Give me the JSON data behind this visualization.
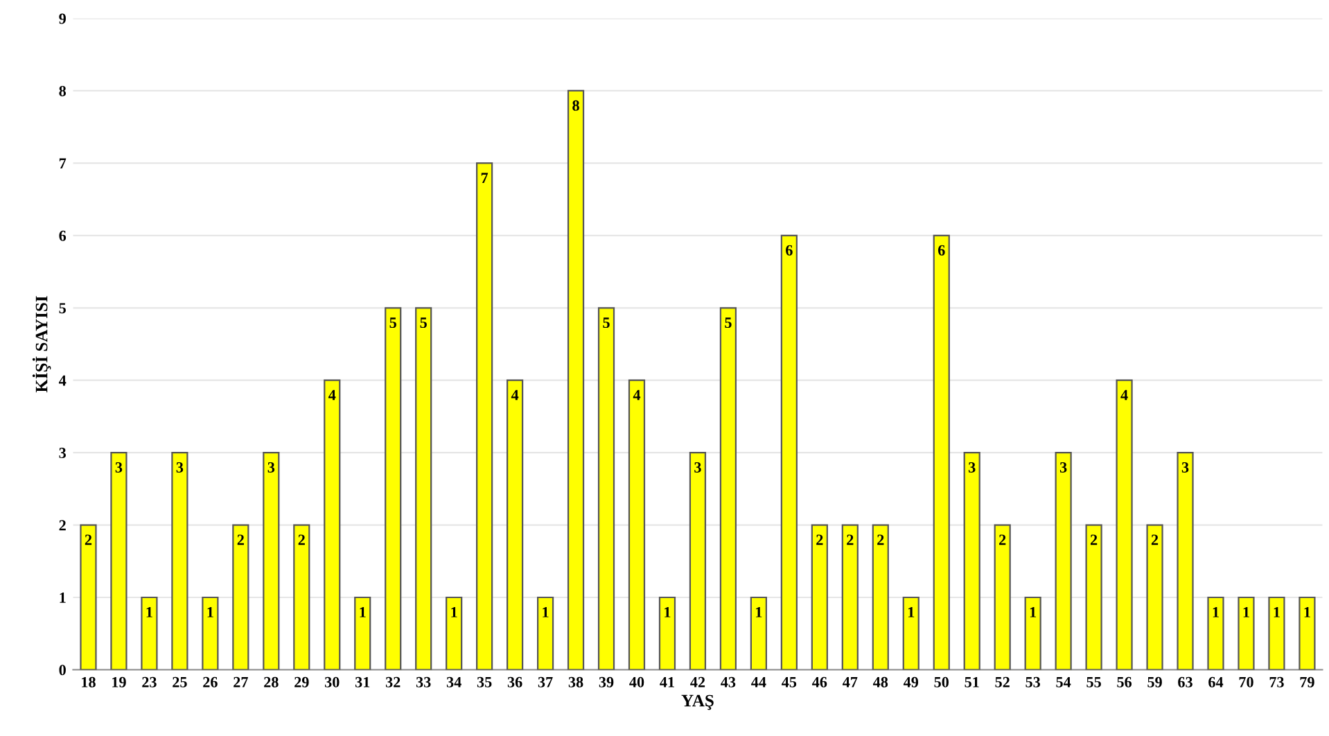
{
  "chart_data": {
    "type": "bar",
    "xlabel": "YAŞ",
    "ylabel": "KİŞİ SAYISI",
    "categories": [
      "18",
      "19",
      "23",
      "25",
      "26",
      "27",
      "28",
      "29",
      "30",
      "31",
      "32",
      "33",
      "34",
      "35",
      "36",
      "37",
      "38",
      "39",
      "40",
      "41",
      "42",
      "43",
      "44",
      "45",
      "46",
      "47",
      "48",
      "49",
      "50",
      "51",
      "52",
      "53",
      "54",
      "55",
      "56",
      "59",
      "63",
      "64",
      "70",
      "73",
      "79"
    ],
    "values": [
      2,
      3,
      1,
      3,
      1,
      2,
      3,
      2,
      4,
      1,
      5,
      5,
      1,
      7,
      4,
      1,
      8,
      5,
      4,
      1,
      3,
      5,
      1,
      6,
      2,
      2,
      2,
      1,
      6,
      3,
      2,
      1,
      3,
      2,
      4,
      2,
      3,
      1,
      1,
      1,
      1
    ],
    "color": "#ffff00",
    "ylim": [
      0,
      9
    ],
    "yticks": [
      0,
      1,
      2,
      3,
      4,
      5,
      6,
      7,
      8,
      9
    ],
    "grid": "y",
    "data_labels": true,
    "legend": false
  }
}
